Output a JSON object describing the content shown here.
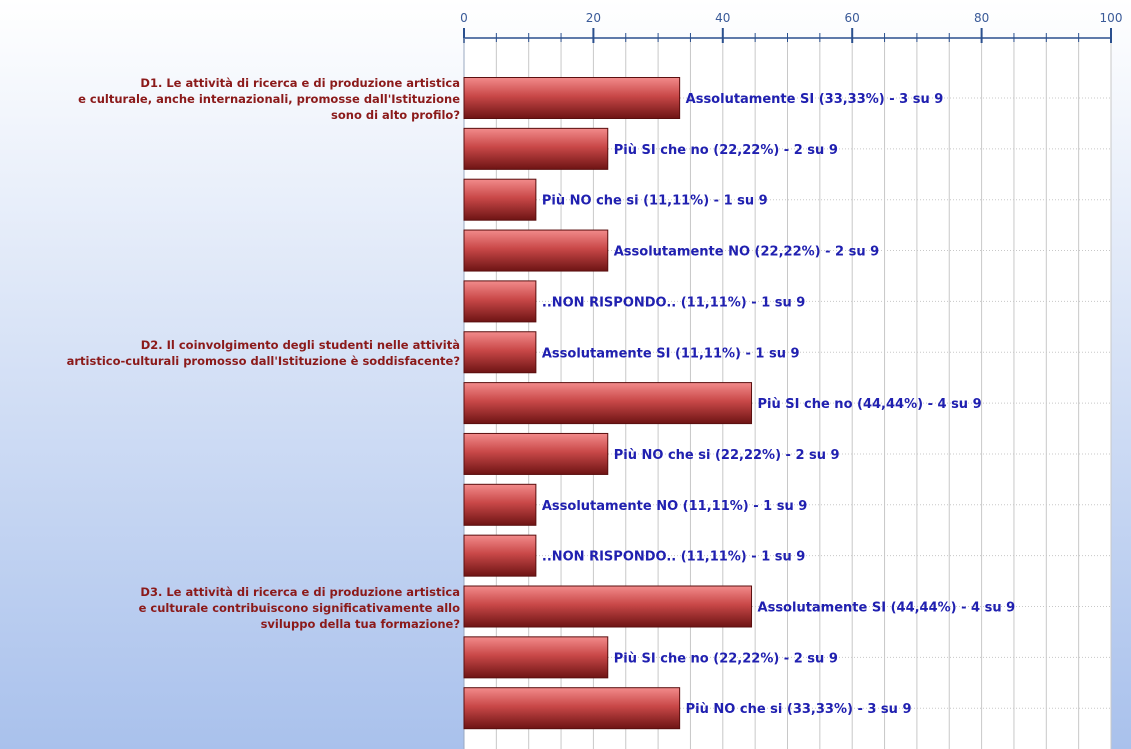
{
  "chart_data": {
    "type": "bar",
    "orientation": "horizontal",
    "xlim": [
      0,
      100
    ],
    "x_ticks": [
      0,
      20,
      40,
      60,
      80,
      100
    ],
    "minor_tick_step": 5,
    "grid": true,
    "questions": [
      {
        "lines": [
          "D1. Le attività di ricerca e di produzione artistica",
          "e culturale, anche internazionali, promosse dall'Istituzione",
          "sono di alto profilo?"
        ],
        "first_bar": 0
      },
      {
        "lines": [
          "D2. Il coinvolgimento degli studenti nelle attività",
          "artistico-culturali promosso dall'Istituzione è soddisfacente?"
        ],
        "first_bar": 5
      },
      {
        "lines": [
          "D3. Le attività di ricerca e di produzione artistica",
          "e culturale contribuiscono significativamente allo",
          "sviluppo della tua formazione?"
        ],
        "first_bar": 10
      }
    ],
    "bars": [
      {
        "value": 33.33,
        "label": "Assolutamente SI (33,33%) - 3 su 9"
      },
      {
        "value": 22.22,
        "label": "Più SI che no (22,22%) - 2 su 9"
      },
      {
        "value": 11.11,
        "label": "Più NO che si (11,11%) - 1 su 9"
      },
      {
        "value": 22.22,
        "label": "Assolutamente NO (22,22%) - 2 su 9"
      },
      {
        "value": 11.11,
        "label": "..NON RISPONDO.. (11,11%) - 1 su 9"
      },
      {
        "value": 11.11,
        "label": "Assolutamente SI (11,11%) - 1 su 9"
      },
      {
        "value": 44.44,
        "label": "Più SI che no (44,44%) - 4 su 9"
      },
      {
        "value": 22.22,
        "label": "Più NO che si (22,22%) - 2 su 9"
      },
      {
        "value": 11.11,
        "label": "Assolutamente NO (11,11%) - 1 su 9"
      },
      {
        "value": 11.11,
        "label": "..NON RISPONDO.. (11,11%) - 1 su 9"
      },
      {
        "value": 44.44,
        "label": "Assolutamente SI (44,44%) - 4 su 9"
      },
      {
        "value": 22.22,
        "label": "Più SI che no (22,22%) - 2 su 9"
      },
      {
        "value": 33.33,
        "label": "Più NO che si (33,33%) - 3 su 9"
      }
    ],
    "colors": {
      "bar_top": "#f28b8b",
      "bar_mid": "#c94848",
      "bar_bottom": "#6e1414",
      "bar_stroke": "#5a0f0f",
      "question_text": "#8b1a1a",
      "value_text": "#2020b0",
      "tick_text": "#3a5a98",
      "axis": "#2a4f8e",
      "grid": "#c8c8c8",
      "background_top": "#ffffff",
      "background_bottom": "#a9c1ec"
    }
  }
}
